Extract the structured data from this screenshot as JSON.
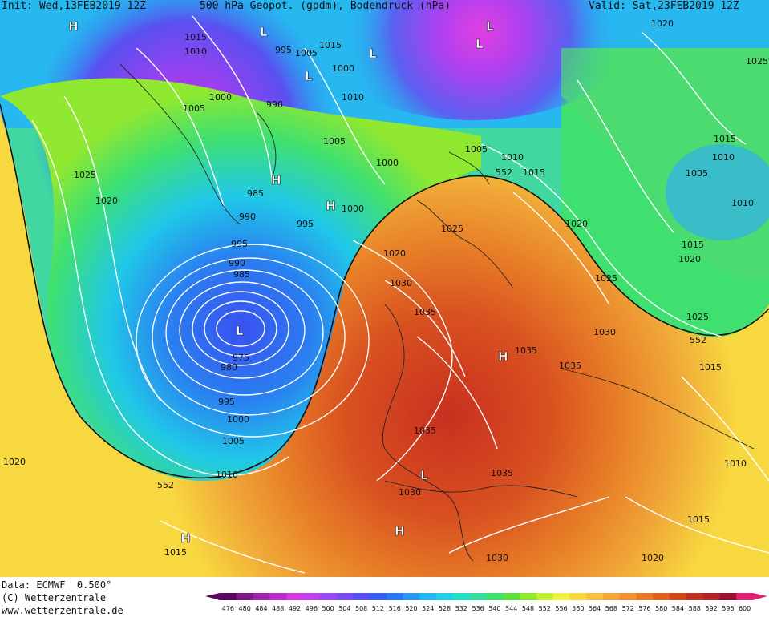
{
  "header": {
    "init": "Init: Wed,13FEB2019 12Z",
    "title": "500 hPa Geopot. (gpdm), Bodendruck (hPa)",
    "valid": "Valid: Sat,23FEB2019 12Z"
  },
  "footer": {
    "data": "Data: ECMWF  0.500°",
    "copyright": "(C) Wetterzentrale",
    "website": "www.wetterzentrale.de"
  },
  "legend": {
    "values": [
      "476",
      "480",
      "484",
      "488",
      "492",
      "496",
      "500",
      "504",
      "508",
      "512",
      "516",
      "520",
      "524",
      "528",
      "532",
      "536",
      "540",
      "544",
      "548",
      "552",
      "556",
      "560",
      "564",
      "568",
      "572",
      "576",
      "580",
      "584",
      "588",
      "592",
      "596",
      "600"
    ],
    "colors": [
      "#5a0a5e",
      "#7a1a82",
      "#9a23a6",
      "#b82ccc",
      "#d23ae0",
      "#c040ec",
      "#9a48f0",
      "#7a4cf0",
      "#5a50f0",
      "#3a5af0",
      "#2a78f0",
      "#2a98f0",
      "#20b8f0",
      "#20d0e8",
      "#20e0c8",
      "#30e0a0",
      "#40e070",
      "#60e040",
      "#90e830",
      "#c0f030",
      "#f0f040",
      "#f8d840",
      "#f8c040",
      "#f0a838",
      "#f09030",
      "#e87828",
      "#e06020",
      "#d04818",
      "#c03020",
      "#b02028",
      "#9a1030",
      "#e02070"
    ]
  },
  "map_labels": {
    "isobars": [
      "1015",
      "1010",
      "995",
      "1005",
      "1015",
      "1000",
      "1000",
      "990",
      "1010",
      "1005",
      "985",
      "1005",
      "1000",
      "990",
      "995",
      "1000",
      "1025",
      "1020",
      "1005",
      "1010",
      "1015",
      "552",
      "1020",
      "1025",
      "1020",
      "995",
      "990",
      "985",
      "1030",
      "1035",
      "1025",
      "1030",
      "1035",
      "1035",
      "980",
      "975",
      "995",
      "1000",
      "1005",
      "1010",
      "552",
      "1020",
      "1035",
      "1030",
      "1035",
      "1030",
      "1015",
      "1020",
      "1015",
      "1010",
      "1005",
      "1010",
      "1015",
      "1020",
      "1025",
      "552",
      "1015",
      "1010",
      "1015",
      "1020",
      "1025"
    ],
    "centers": [
      "H",
      "L",
      "L",
      "L",
      "L",
      "L",
      "H",
      "H",
      "L",
      "H",
      "L",
      "H",
      "H"
    ]
  }
}
